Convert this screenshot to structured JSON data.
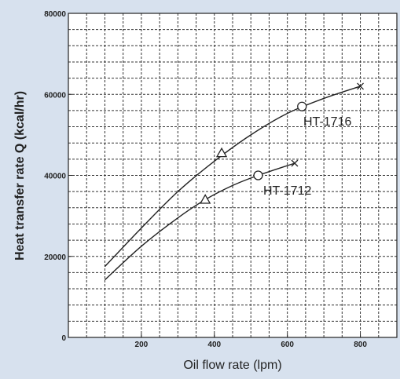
{
  "chart_data": {
    "type": "line",
    "xlabel": "Oil flow rate (lpm)",
    "ylabel": "Heat transfer rate  Q (kcal/hr)",
    "xlim": [
      0,
      900
    ],
    "ylim": [
      0,
      80000
    ],
    "x_ticks": [
      200,
      400,
      600,
      800
    ],
    "y_ticks": [
      0,
      20000,
      40000,
      60000,
      80000
    ],
    "x_tick_labels": [
      "200",
      "400",
      "600",
      "800"
    ],
    "y_tick_labels": [
      "0",
      "20000",
      "40000",
      "60000",
      "80000"
    ],
    "grid": true,
    "series": [
      {
        "name": "HT-1716",
        "x": [
          100,
          200,
          300,
          400,
          500,
          600,
          700,
          800
        ],
        "y": [
          17500,
          27000,
          36000,
          43500,
          50000,
          55300,
          59000,
          62000
        ],
        "markers": [
          {
            "x": 420,
            "y": 45500,
            "shape": "triangle"
          },
          {
            "x": 640,
            "y": 57000,
            "shape": "circle"
          },
          {
            "x": 800,
            "y": 62000,
            "shape": "cross"
          }
        ]
      },
      {
        "name": "HT-1712",
        "x": [
          100,
          200,
          300,
          375,
          450,
          520,
          620
        ],
        "y": [
          14200,
          22500,
          29500,
          34000,
          37500,
          40000,
          43000
        ],
        "markers": [
          {
            "x": 375,
            "y": 34000,
            "shape": "triangle"
          },
          {
            "x": 520,
            "y": 40000,
            "shape": "circle"
          },
          {
            "x": 620,
            "y": 43000,
            "shape": "cross"
          }
        ]
      }
    ],
    "annotations": [
      "HT-1716",
      "HT-1712"
    ]
  },
  "colors": {
    "background": "#d7e1ee",
    "plot_area": "#ffffff",
    "grid": "#333333",
    "line": "#222222"
  }
}
